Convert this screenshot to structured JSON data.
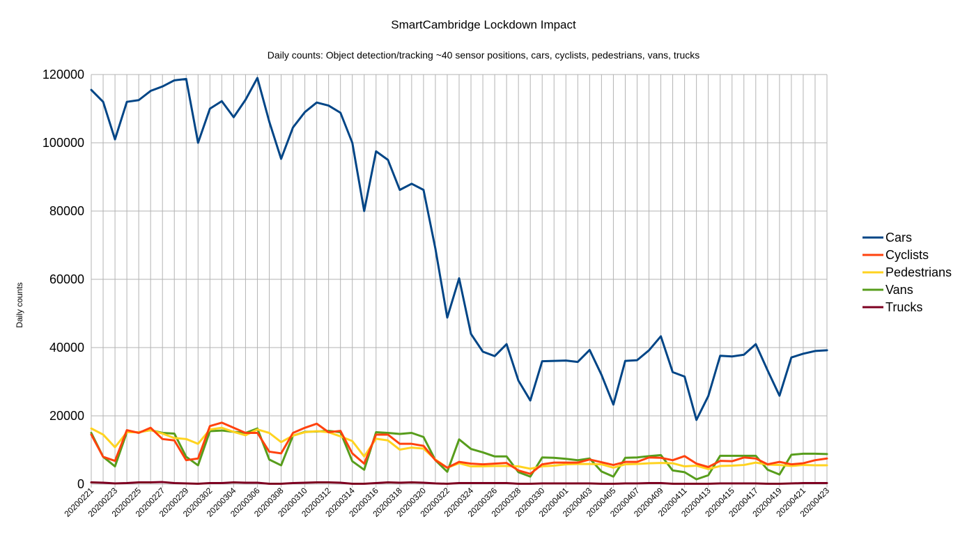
{
  "chart_data": {
    "type": "line",
    "title": "SmartCambridge Lockdown Impact",
    "subtitle": "Daily counts: Object detection/tracking ~40 sensor positions, cars, cyclists, pedestrians, vans, trucks",
    "xlabel": "",
    "ylabel": "Daily counts",
    "ylim": [
      0,
      120000
    ],
    "yticks": [
      0,
      20000,
      40000,
      60000,
      80000,
      100000,
      120000
    ],
    "ytick_labels": [
      "0",
      "20000",
      "40000",
      "60000",
      "80000",
      "100000",
      "120000"
    ],
    "grid": true,
    "legend_position": "right",
    "categories": [
      "20200221",
      "20200222",
      "20200223",
      "20200224",
      "20200225",
      "20200226",
      "20200227",
      "20200228",
      "20200229",
      "20200301",
      "20200302",
      "20200303",
      "20200304",
      "20200305",
      "20200306",
      "20200307",
      "20200308",
      "20200309",
      "20200310",
      "20200311",
      "20200312",
      "20200313",
      "20200314",
      "20200315",
      "20200316",
      "20200317",
      "20200318",
      "20200319",
      "20200320",
      "20200321",
      "20200322",
      "20200323",
      "20200324",
      "20200325",
      "20200326",
      "20200327",
      "20200328",
      "20200329",
      "20200330",
      "20200331",
      "20200401",
      "20200402",
      "20200403",
      "20200404",
      "20200405",
      "20200406",
      "20200407",
      "20200408",
      "20200409",
      "20200410",
      "20200411",
      "20200412",
      "20200413",
      "20200414",
      "20200415",
      "20200416",
      "20200417",
      "20200418",
      "20200419",
      "20200420",
      "20200421",
      "20200422",
      "20200423"
    ],
    "xtick_labels": [
      "20200221",
      "20200223",
      "20200225",
      "20200227",
      "20200229",
      "20200302",
      "20200304",
      "20200306",
      "20200308",
      "20200310",
      "20200312",
      "20200314",
      "20200316",
      "20200318",
      "20200320",
      "20200322",
      "20200324",
      "20200326",
      "20200328",
      "20200330",
      "20200401",
      "20200403",
      "20200405",
      "20200407",
      "20200409",
      "20200411",
      "20200413",
      "20200415",
      "20200417",
      "20200419",
      "20200421",
      "20200423"
    ],
    "series": [
      {
        "name": "Cars",
        "color": "#004586",
        "values": [
          115500,
          112000,
          101000,
          112000,
          112500,
          115200,
          116500,
          118300,
          118700,
          100000,
          110000,
          112200,
          107500,
          112600,
          119000,
          106200,
          95300,
          104500,
          109000,
          111800,
          110900,
          108800,
          100000,
          80000,
          97500,
          95000,
          86200,
          88000,
          86200,
          69000,
          48800,
          60300,
          44000,
          38800,
          37500,
          41000,
          30300,
          24500,
          36000,
          36100,
          36200,
          35800,
          39300,
          32000,
          23300,
          36100,
          36300,
          39200,
          43300,
          32800,
          31500,
          18800,
          25800,
          37600,
          37400,
          37900,
          41000,
          33300,
          25900,
          37100,
          38200,
          39000,
          39200
        ]
      },
      {
        "name": "Cyclists",
        "color": "#ff420e",
        "values": [
          14500,
          8000,
          6800,
          15800,
          15000,
          16500,
          13200,
          12800,
          7000,
          7500,
          17000,
          18000,
          16500,
          15000,
          15000,
          9500,
          9000,
          15000,
          16500,
          17700,
          15200,
          15600,
          9000,
          6000,
          14500,
          14500,
          11800,
          11800,
          11200,
          7000,
          4800,
          6500,
          6000,
          5800,
          6000,
          6200,
          4000,
          3000,
          5800,
          6300,
          6300,
          6300,
          7200,
          6400,
          5600,
          6500,
          6500,
          7800,
          7700,
          7000,
          8200,
          6000,
          5000,
          6800,
          6700,
          7800,
          7500,
          5800,
          6500,
          5800,
          6100,
          7000,
          7500
        ]
      },
      {
        "name": "Pedestrians",
        "color": "#ffd320",
        "values": [
          16300,
          14500,
          10800,
          15200,
          15200,
          15800,
          14800,
          13500,
          13200,
          11800,
          16000,
          16500,
          15300,
          14300,
          16000,
          15000,
          12300,
          14200,
          15200,
          15500,
          15200,
          14000,
          12600,
          8100,
          13300,
          12800,
          10100,
          10700,
          10400,
          7200,
          4800,
          6100,
          5200,
          5200,
          5300,
          5300,
          5200,
          4500,
          5200,
          5400,
          5800,
          5900,
          5900,
          5800,
          4800,
          5800,
          5900,
          6100,
          6200,
          6100,
          5200,
          5400,
          4400,
          5300,
          5400,
          5600,
          6300,
          5700,
          5600,
          5300,
          5600,
          5500,
          5500
        ]
      },
      {
        "name": "Vans",
        "color": "#579d1c",
        "values": [
          15000,
          8000,
          5200,
          15200,
          15200,
          15800,
          15000,
          14800,
          8000,
          5500,
          15500,
          15700,
          15300,
          15000,
          16300,
          7200,
          5500,
          14200,
          15300,
          15400,
          15600,
          15200,
          6700,
          4200,
          15200,
          15000,
          14700,
          15000,
          13800,
          7000,
          3600,
          13100,
          10300,
          9300,
          8100,
          8100,
          3500,
          2200,
          7800,
          7700,
          7400,
          7000,
          7500,
          3700,
          2200,
          7700,
          7800,
          8200,
          8500,
          4000,
          3500,
          1400,
          2600,
          8300,
          8300,
          8300,
          8300,
          4200,
          2800,
          8600,
          8900,
          8900,
          8800
        ]
      },
      {
        "name": "Trucks",
        "color": "#7e0021",
        "values": [
          500,
          400,
          200,
          300,
          500,
          500,
          600,
          300,
          200,
          100,
          300,
          300,
          500,
          400,
          400,
          100,
          100,
          300,
          400,
          500,
          500,
          400,
          100,
          100,
          300,
          500,
          400,
          500,
          400,
          200,
          100,
          300,
          300,
          300,
          300,
          300,
          100,
          100,
          200,
          200,
          200,
          200,
          200,
          100,
          100,
          200,
          200,
          300,
          300,
          100,
          100,
          100,
          100,
          200,
          200,
          200,
          200,
          100,
          100,
          200,
          300,
          300,
          300
        ]
      }
    ]
  }
}
